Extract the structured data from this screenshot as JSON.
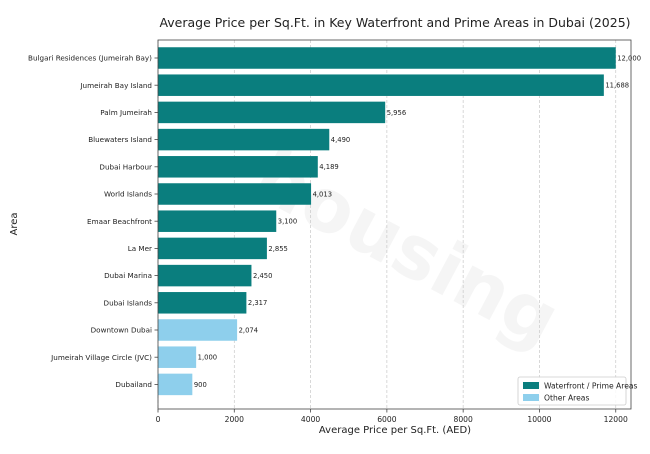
{
  "colors": {
    "prime": "#0a7e7e",
    "other": "#8ecfec"
  },
  "watermark": {
    "text": "housing"
  },
  "chart_data": {
    "type": "bar",
    "orientation": "horizontal",
    "title": "Average Price per Sq.Ft. in Key Waterfront and Prime Areas in Dubai (2025)",
    "xlabel": "Average Price per Sq.Ft. (AED)",
    "ylabel": "Area",
    "xlim": [
      0,
      12400
    ],
    "xticks": [
      0,
      2000,
      4000,
      6000,
      8000,
      10000,
      12000
    ],
    "grid": "vertical-dashed",
    "legend_position": "bottom-right",
    "categories": [
      "Bulgari Residences (Jumeirah Bay)",
      "Jumeirah Bay Island",
      "Palm Jumeirah",
      "Bluewaters Island",
      "Dubai Harbour",
      "World Islands",
      "Emaar Beachfront",
      "La Mer",
      "Dubai Marina",
      "Dubai Islands",
      "Downtown Dubai",
      "Jumeirah Village Circle (JVC)",
      "Dubailand"
    ],
    "values": [
      12000,
      11688,
      5956,
      4490,
      4189,
      4013,
      3100,
      2855,
      2450,
      2317,
      2074,
      1000,
      900
    ],
    "value_labels": [
      "12,000",
      "11,688",
      "5,956",
      "4,490",
      "4,189",
      "4,013",
      "3,100",
      "2,855",
      "2,450",
      "2,317",
      "2,074",
      "1,000",
      "900"
    ],
    "groups": [
      "prime",
      "prime",
      "prime",
      "prime",
      "prime",
      "prime",
      "prime",
      "prime",
      "prime",
      "prime",
      "other",
      "other",
      "other"
    ],
    "series": [
      {
        "name": "Waterfront / Prime Areas",
        "key": "prime"
      },
      {
        "name": "Other Areas",
        "key": "other"
      }
    ]
  }
}
